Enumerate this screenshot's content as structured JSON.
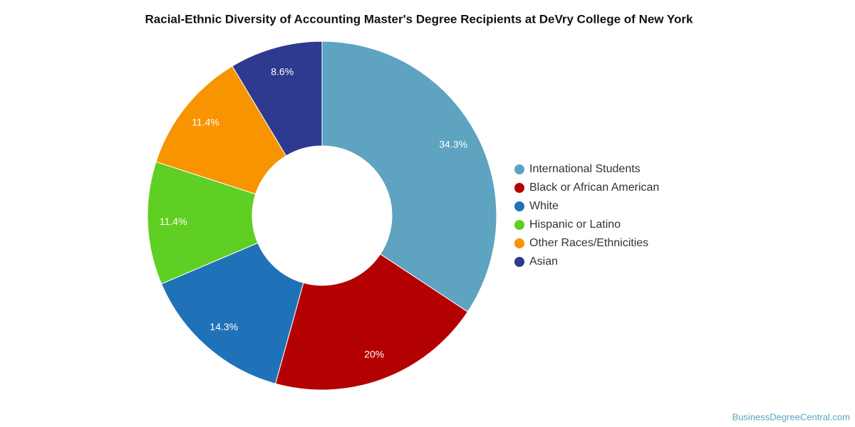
{
  "chart_data": {
    "type": "pie",
    "title": "Racial-Ethnic Diversity of Accounting Master's Degree Recipients at DeVry College of New York",
    "categories": [
      "International Students",
      "Black or African American",
      "White",
      "Hispanic or Latino",
      "Other Races/Ethnicities",
      "Asian"
    ],
    "values": [
      34.3,
      20,
      14.3,
      11.4,
      11.4,
      8.6
    ],
    "value_labels": [
      "34.3%",
      "20%",
      "14.3%",
      "11.4%",
      "11.4%",
      "8.6%"
    ],
    "colors": [
      "#5ea3bf",
      "#b30000",
      "#1f72b8",
      "#60cf23",
      "#f79400",
      "#2d3a8f"
    ],
    "donut": true,
    "legend": "right",
    "source": "BusinessDegreeCentral.com"
  }
}
